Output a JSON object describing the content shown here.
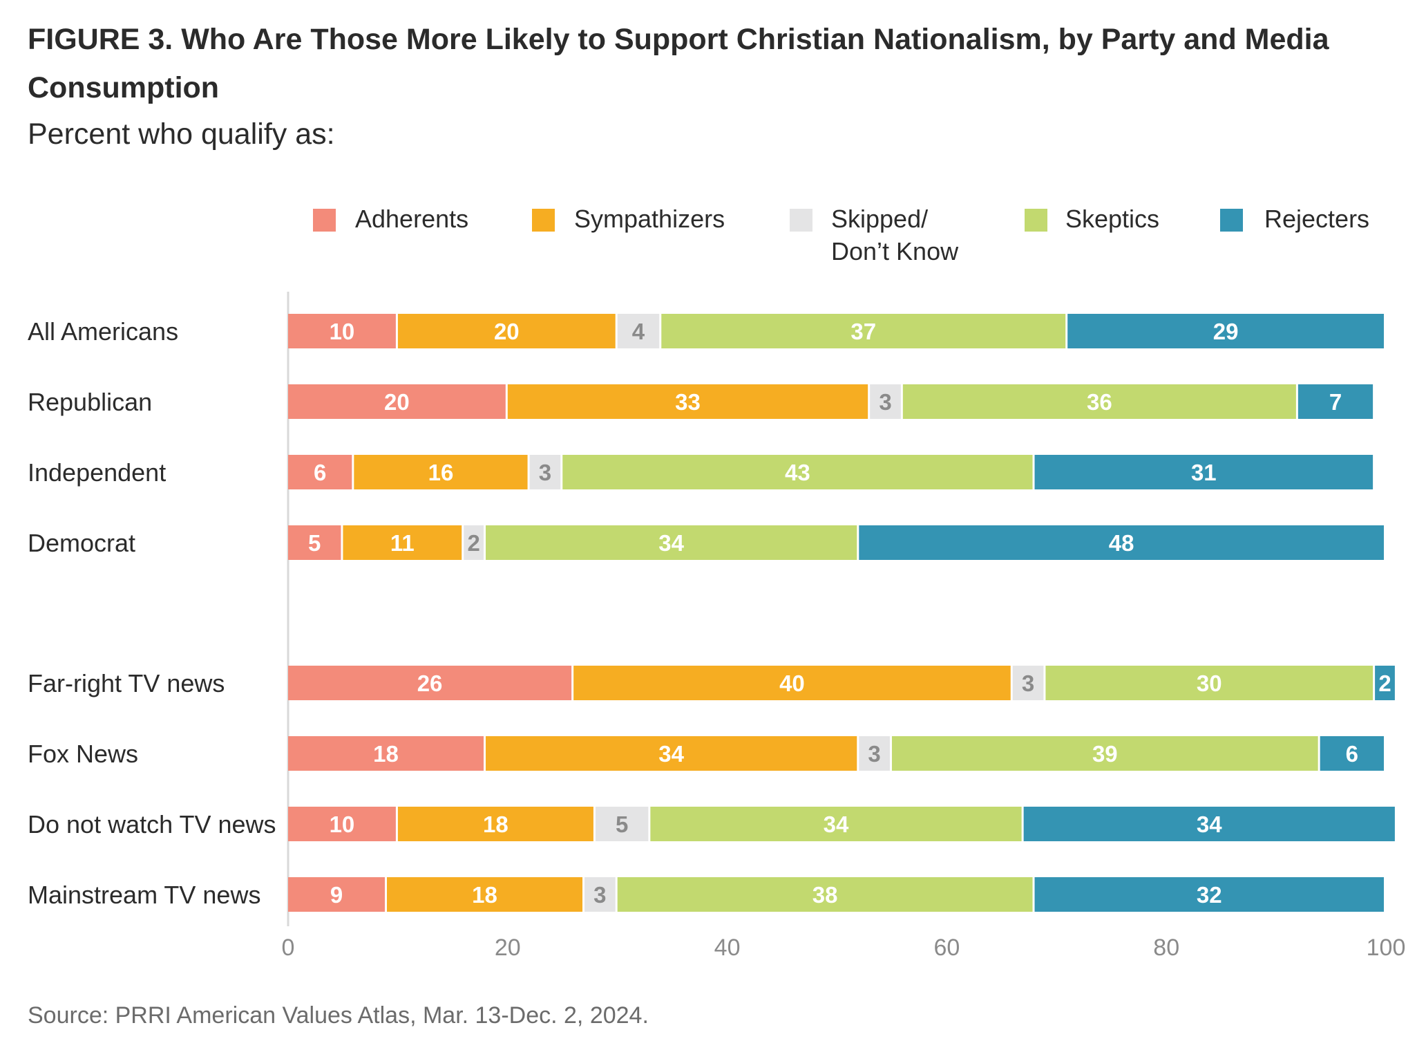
{
  "header": {
    "title": "FIGURE 3.  Who Are Those More Likely to Support Christian Nationalism, by Party and Media Consumption",
    "subtitle": "Percent who qualify as:"
  },
  "footer": {
    "source": "Source: PRRI American Values Atlas, Mar. 13-Dec. 2, 2024."
  },
  "chart_data": {
    "type": "bar",
    "orientation": "horizontal",
    "stacked": true,
    "title": "FIGURE 3.  Who Are Those More Likely to Support Christian Nationalism, by Party and Media Consumption",
    "subtitle": "Percent who qualify as:",
    "categories": [
      "All Americans",
      "Republican",
      "Independent",
      "Democrat",
      "Far-right TV news",
      "Fox News",
      "Do not watch TV news",
      "Mainstream TV news"
    ],
    "series": [
      {
        "name": "Adherents",
        "color": "#f38b7a",
        "label_color": "#ffffff",
        "values": [
          10,
          20,
          6,
          5,
          26,
          18,
          10,
          9
        ]
      },
      {
        "name": "Sympathizers",
        "color": "#f6ad22",
        "label_color": "#ffffff",
        "values": [
          20,
          33,
          16,
          11,
          40,
          34,
          18,
          18
        ]
      },
      {
        "name": "Skipped/ Don’t Know",
        "color": "#e4e4e5",
        "label_color": "#8a8a8a",
        "values": [
          4,
          3,
          3,
          2,
          3,
          3,
          5,
          3
        ]
      },
      {
        "name": "Skeptics",
        "color": "#c2d96f",
        "label_color": "#ffffff",
        "values": [
          37,
          36,
          43,
          34,
          30,
          39,
          34,
          38
        ]
      },
      {
        "name": "Rejecters",
        "color": "#3494b3",
        "label_color": "#ffffff",
        "values": [
          29,
          7,
          31,
          48,
          2,
          6,
          34,
          32
        ]
      }
    ],
    "xlim": [
      0,
      100
    ],
    "x_ticks": [
      0,
      20,
      40,
      60,
      80,
      100
    ],
    "legend": "top",
    "grid": false
  }
}
